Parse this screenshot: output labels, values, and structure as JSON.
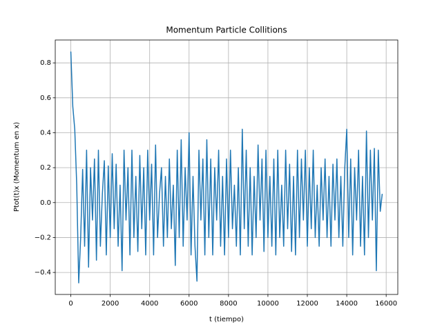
{
  "chart_data": {
    "type": "line",
    "title": "Momentum Particle Collitions",
    "xlabel": "t (tiempo)",
    "ylabel": "Ptot(t)x (Momentum en x)",
    "color": "#1f77b4",
    "grid": true,
    "xlim": [
      -790,
      16590
    ],
    "ylim": [
      -0.526,
      0.931
    ],
    "xticks": [
      0,
      2000,
      4000,
      6000,
      8000,
      10000,
      12000,
      14000,
      16000
    ],
    "yticks": [
      {
        "value": -0.4,
        "label": "−0.4"
      },
      {
        "value": -0.2,
        "label": "−0.2"
      },
      {
        "value": 0,
        "label": "0.0"
      },
      0.2,
      0.4,
      0.6,
      0.8
    ],
    "x": [
      0,
      100,
      200,
      300,
      400,
      500,
      600,
      700,
      800,
      900,
      1000,
      1100,
      1200,
      1300,
      1400,
      1500,
      1600,
      1700,
      1800,
      1900,
      2000,
      2100,
      2200,
      2300,
      2400,
      2500,
      2600,
      2700,
      2800,
      2900,
      3000,
      3100,
      3200,
      3300,
      3400,
      3500,
      3600,
      3700,
      3800,
      3900,
      4000,
      4100,
      4200,
      4300,
      4400,
      4500,
      4600,
      4700,
      4800,
      4900,
      5000,
      5100,
      5200,
      5300,
      5400,
      5500,
      5600,
      5700,
      5800,
      5900,
      6000,
      6100,
      6200,
      6300,
      6400,
      6500,
      6600,
      6700,
      6800,
      6900,
      7000,
      7100,
      7200,
      7300,
      7400,
      7500,
      7600,
      7700,
      7800,
      7900,
      8000,
      8100,
      8200,
      8300,
      8400,
      8500,
      8600,
      8700,
      8800,
      8900,
      9000,
      9100,
      9200,
      9300,
      9400,
      9500,
      9600,
      9700,
      9800,
      9900,
      10000,
      10100,
      10200,
      10300,
      10400,
      10500,
      10600,
      10700,
      10800,
      10900,
      11000,
      11100,
      11200,
      11300,
      11400,
      11500,
      11600,
      11700,
      11800,
      11900,
      12000,
      12100,
      12200,
      12300,
      12400,
      12500,
      12600,
      12700,
      12800,
      12900,
      13000,
      13100,
      13200,
      13300,
      13400,
      13500,
      13600,
      13700,
      13800,
      13900,
      14000,
      14100,
      14200,
      14300,
      14400,
      14500,
      14600,
      14700,
      14800,
      14900,
      15000,
      15100,
      15200,
      15300,
      15400,
      15500,
      15600,
      15700,
      15800
    ],
    "values": [
      0.865,
      0.55,
      0.42,
      0.1,
      -0.46,
      -0.2,
      0.19,
      -0.25,
      0.3,
      -0.37,
      0.2,
      -0.1,
      0.25,
      -0.33,
      0.3,
      -0.25,
      0.05,
      0.24,
      -0.3,
      0.21,
      -0.2,
      0.28,
      -0.15,
      0.22,
      -0.25,
      0.1,
      -0.39,
      0.3,
      -0.1,
      0.2,
      -0.3,
      0.3,
      -0.2,
      0.15,
      -0.28,
      0.27,
      -0.15,
      0.2,
      -0.3,
      0.3,
      -0.1,
      0.22,
      -0.3,
      0.33,
      -0.2,
      0.05,
      0.2,
      -0.25,
      0.15,
      -0.2,
      0.25,
      -0.15,
      0.1,
      -0.36,
      0.3,
      -0.2,
      0.36,
      -0.25,
      0.2,
      -0.1,
      0.4,
      -0.3,
      0.15,
      -0.25,
      -0.45,
      0.3,
      -0.1,
      0.25,
      -0.3,
      0.36,
      -0.2,
      0.25,
      -0.3,
      0.2,
      -0.1,
      0.3,
      -0.25,
      0.15,
      -0.3,
      0.25,
      -0.2,
      0.3,
      -0.15,
      0.1,
      -0.25,
      0.2,
      -0.3,
      0.42,
      -0.15,
      0.3,
      -0.25,
      0.2,
      -0.3,
      0.15,
      -0.2,
      0.33,
      -0.1,
      0.25,
      -0.28,
      0.3,
      -0.2,
      0.15,
      -0.25,
      0.25,
      -0.3,
      0.3,
      -0.2,
      0.1,
      -0.25,
      0.3,
      -0.15,
      0.22,
      -0.28,
      0.15,
      -0.3,
      0.3,
      -0.2,
      0.25,
      -0.1,
      0.3,
      -0.25,
      0.2,
      -0.15,
      0.3,
      -0.2,
      0.1,
      -0.25,
      0.2,
      -0.1,
      0.25,
      -0.2,
      0.15,
      -0.25,
      0.22,
      -0.1,
      0.25,
      -0.2,
      0.15,
      -0.25,
      0.2,
      0.42,
      -0.2,
      0.25,
      -0.3,
      0.2,
      -0.1,
      0.3,
      -0.25,
      0.15,
      -0.3,
      0.41,
      -0.2,
      0.3,
      -0.1,
      0.31,
      -0.39,
      0.3,
      -0.05,
      0.05
    ]
  }
}
